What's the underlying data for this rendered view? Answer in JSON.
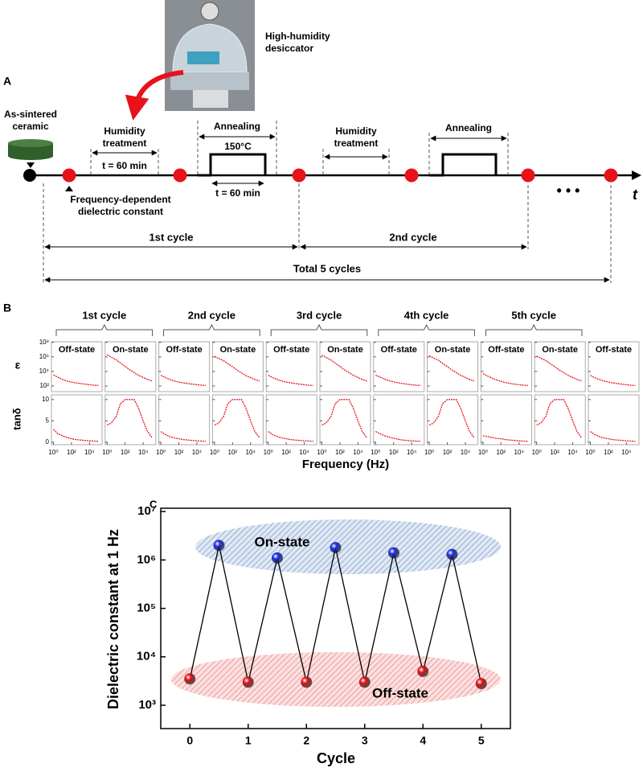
{
  "panel_a": {
    "photo_label": "High-humidity desiccator",
    "panel_letter": "A",
    "start_label": "As-sintered ceramic",
    "humidity_1": "Humidity treatment",
    "humidity_time": "t = 60 min",
    "annealing_1": "Annealing",
    "temperature": "150°C",
    "annealing_time": "t = 60 min",
    "humidity_2": "Humidity treatment",
    "annealing_2": "Annealing",
    "measurement": "Frequency-dependent dielectric constant",
    "cycle_1": "1st cycle",
    "cycle_2": "2nd cycle",
    "total": "Total 5 cycles",
    "axis_label": "t",
    "ellipsis": "• • •"
  },
  "chart_data": [
    {
      "type": "small-multiples",
      "panel_letter": "B",
      "cycles": [
        "1st cycle",
        "2nd cycle",
        "3rd cycle",
        "4th cycle",
        "5th cycle"
      ],
      "row_labels": [
        "ε",
        "tanδ"
      ],
      "x_label": "Frequency (Hz)",
      "x_scale": "log",
      "x": [
        1,
        3,
        10,
        30,
        100,
        300,
        1000,
        3000,
        10000,
        30000,
        100000
      ],
      "xlim": [
        0.6,
        250000
      ],
      "xticks": [
        {
          "value": 1,
          "label": "10⁰"
        },
        {
          "value": 100,
          "label": "10²"
        },
        {
          "value": 10000,
          "label": "10⁴"
        }
      ],
      "eps_ylim": [
        17,
        120000000
      ],
      "eps_yticks": [
        {
          "value": 100,
          "label": "10²"
        },
        {
          "value": 10000,
          "label": "10⁴"
        },
        {
          "value": 1000000,
          "label": "10⁶"
        },
        {
          "value": 100000000,
          "label": "10⁸"
        }
      ],
      "tan_ylim": [
        -0.6,
        11.1
      ],
      "tan_yticks": [
        0,
        5,
        10
      ],
      "color": "#e8121a",
      "panels": [
        {
          "state": "Off-state",
          "eps": [
            3500,
            1600,
            800,
            500,
            350,
            270,
            220,
            180,
            150,
            130,
            120
          ],
          "tan": [
            3,
            2,
            1.5,
            1.1,
            0.8,
            0.6,
            0.5,
            0.4,
            0.3,
            0.25,
            0.2
          ]
        },
        {
          "state": "On-state",
          "eps": [
            2000000,
            900000,
            400000,
            150000,
            50000,
            18000,
            7000,
            3000,
            1500,
            800,
            500
          ],
          "tan": [
            4,
            4.5,
            6,
            9,
            10,
            10,
            10,
            8,
            5,
            2.5,
            1
          ]
        },
        {
          "state": "Off-state",
          "eps": [
            3000,
            1500,
            800,
            500,
            350,
            270,
            220,
            180,
            150,
            130,
            120
          ],
          "tan": [
            2.5,
            1.8,
            1.3,
            1,
            0.8,
            0.6,
            0.5,
            0.4,
            0.3,
            0.25,
            0.2
          ]
        },
        {
          "state": "On-state",
          "eps": [
            1100000,
            600000,
            300000,
            120000,
            45000,
            16000,
            6500,
            2800,
            1400,
            800,
            500
          ],
          "tan": [
            4,
            4.5,
            6,
            9,
            10,
            10,
            10,
            8,
            5,
            2.5,
            1
          ]
        },
        {
          "state": "Off-state",
          "eps": [
            3000,
            1500,
            800,
            500,
            350,
            270,
            220,
            180,
            150,
            130,
            120
          ],
          "tan": [
            2.5,
            1.8,
            1.3,
            1,
            0.8,
            0.6,
            0.5,
            0.4,
            0.3,
            0.25,
            0.2
          ]
        },
        {
          "state": "On-state",
          "eps": [
            1800000,
            800000,
            380000,
            140000,
            50000,
            17000,
            7000,
            3000,
            1500,
            800,
            500
          ],
          "tan": [
            4,
            4.5,
            6,
            9,
            10,
            10,
            10,
            8,
            5,
            2.5,
            1
          ]
        },
        {
          "state": "Off-state",
          "eps": [
            3000,
            1800,
            900,
            550,
            380,
            280,
            220,
            180,
            150,
            130,
            120
          ],
          "tan": [
            2.5,
            2,
            1.5,
            1.2,
            0.9,
            0.7,
            0.5,
            0.4,
            0.3,
            0.25,
            0.2
          ]
        },
        {
          "state": "On-state",
          "eps": [
            1400000,
            700000,
            350000,
            130000,
            48000,
            17000,
            7000,
            3000,
            1500,
            800,
            500
          ],
          "tan": [
            4,
            4.5,
            6,
            9,
            10,
            10,
            10,
            8,
            5,
            2.5,
            1
          ]
        },
        {
          "state": "Off-state",
          "eps": [
            5000,
            2500,
            1200,
            700,
            450,
            300,
            230,
            180,
            150,
            130,
            120
          ],
          "tan": [
            1.5,
            1.3,
            1.1,
            0.9,
            0.8,
            0.6,
            0.5,
            0.4,
            0.3,
            0.25,
            0.2
          ]
        },
        {
          "state": "On-state",
          "eps": [
            1300000,
            650000,
            330000,
            125000,
            46000,
            16500,
            7000,
            3000,
            1500,
            800,
            500
          ],
          "tan": [
            4,
            4.5,
            6,
            9,
            10,
            10,
            10,
            8,
            5,
            2.5,
            1
          ]
        },
        {
          "state": "Off-state",
          "eps": [
            2800,
            1400,
            800,
            500,
            350,
            270,
            220,
            180,
            150,
            130,
            120
          ],
          "tan": [
            2.5,
            1.8,
            1.3,
            1,
            0.8,
            0.6,
            0.5,
            0.4,
            0.3,
            0.25,
            0.2
          ]
        }
      ]
    },
    {
      "type": "line",
      "panel_letter": "C",
      "x_label": "Cycle",
      "y_label": "Dielectric constant at 1 Hz",
      "y_scale": "log",
      "x": [
        0,
        0.5,
        1,
        1.5,
        2,
        2.5,
        3,
        3.5,
        4,
        4.5,
        5
      ],
      "values": [
        3500,
        2000000,
        3000,
        1100000,
        3000,
        1800000,
        3000,
        1400000,
        5000,
        1300000,
        2800
      ],
      "marker_colors": [
        "#e8121a",
        "#1a2ee8",
        "#e8121a",
        "#1a2ee8",
        "#e8121a",
        "#1a2ee8",
        "#e8121a",
        "#1a2ee8",
        "#e8121a",
        "#1a2ee8",
        "#e8121a"
      ],
      "line_color": "#000000",
      "xlim": [
        -0.5,
        5.5
      ],
      "xticks": [
        0,
        1,
        2,
        3,
        4,
        5
      ],
      "ylim": [
        330,
        11700000
      ],
      "yticks": [
        {
          "value": 1000,
          "label": "10³"
        },
        {
          "value": 10000,
          "label": "10⁴"
        },
        {
          "value": 100000,
          "label": "10⁵"
        },
        {
          "value": 1000000,
          "label": "10⁶"
        },
        {
          "value": 10000000,
          "label": "10⁷"
        }
      ],
      "annotations": [
        "On-state",
        "Off-state"
      ]
    }
  ]
}
